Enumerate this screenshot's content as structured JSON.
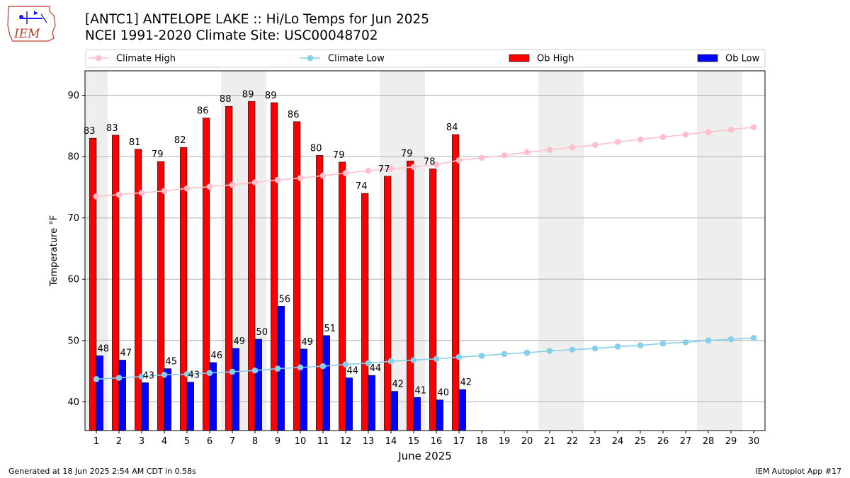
{
  "title_line1": "[ANTC1] ANTELOPE LAKE :: Hi/Lo Temps for Jun 2025",
  "title_line2": "NCEI 1991-2020 Climate Site: USC00048702",
  "logo_text": "IEM",
  "footer_left": "Generated at 18 Jun 2025 2:54 AM CDT in 0.58s",
  "footer_right": "IEM Autoplot App #17",
  "colors": {
    "climate_high": "#ffc0cb",
    "climate_low": "#87ceeb",
    "ob_high": "#ff0000",
    "ob_low": "#0000ff",
    "weekend_band": "#eeeeee",
    "grid": "#b0b0b0"
  },
  "chart_data": {
    "type": "bar",
    "xlabel": "June 2025",
    "ylabel": "Temperature °F",
    "xlim": [
      0.5,
      30.5
    ],
    "ylim": [
      35.3,
      94.0
    ],
    "yticks": [
      40,
      50,
      60,
      70,
      80,
      90
    ],
    "grid": "horizontal",
    "legend_position": "top",
    "days": [
      1,
      2,
      3,
      4,
      5,
      6,
      7,
      8,
      9,
      10,
      11,
      12,
      13,
      14,
      15,
      16,
      17,
      18,
      19,
      20,
      21,
      22,
      23,
      24,
      25,
      26,
      27,
      28,
      29,
      30
    ],
    "weekend_bands": [
      [
        0.5,
        1.5
      ],
      [
        6.5,
        8.5
      ],
      [
        13.5,
        15.5
      ],
      [
        20.5,
        22.5
      ],
      [
        27.5,
        29.5
      ]
    ],
    "series": [
      {
        "name": "Climate High",
        "kind": "line",
        "values": [
          73.5,
          73.8,
          74.1,
          74.4,
          74.8,
          75.1,
          75.4,
          75.8,
          76.2,
          76.5,
          76.9,
          77.3,
          77.7,
          78.0,
          78.3,
          78.7,
          79.4,
          79.8,
          80.2,
          80.7,
          81.1,
          81.5,
          81.9,
          82.4,
          82.8,
          83.2,
          83.6,
          84.0,
          84.4,
          84.8
        ]
      },
      {
        "name": "Climate Low",
        "kind": "line",
        "values": [
          43.7,
          43.9,
          44.1,
          44.4,
          44.5,
          44.7,
          44.9,
          45.1,
          45.4,
          45.6,
          45.8,
          46.1,
          46.3,
          46.6,
          46.8,
          47.0,
          47.3,
          47.5,
          47.8,
          48.0,
          48.3,
          48.5,
          48.7,
          49.0,
          49.2,
          49.5,
          49.7,
          50.0,
          50.2,
          50.4
        ]
      },
      {
        "name": "Ob High",
        "kind": "bar",
        "values": [
          83,
          83.5,
          81.2,
          79.2,
          81.5,
          86.3,
          88.2,
          89,
          88.8,
          85.7,
          80.2,
          79.1,
          74,
          76.8,
          79.3,
          78,
          83.6
        ],
        "labels": [
          "83",
          "83",
          "81",
          "79",
          "82",
          "86",
          "88",
          "89",
          "89",
          "86",
          "80",
          "79",
          "74",
          "77",
          "79",
          "78",
          "84"
        ]
      },
      {
        "name": "Ob Low",
        "kind": "bar",
        "values": [
          47.5,
          46.8,
          43.1,
          45.4,
          43.2,
          46.4,
          48.7,
          50.2,
          55.6,
          48.6,
          50.8,
          43.9,
          44.3,
          41.7,
          40.7,
          40.3,
          42
        ],
        "labels": [
          "48",
          "47",
          "43",
          "45",
          "43",
          "46",
          "49",
          "50",
          "56",
          "49",
          "51",
          "44",
          "44",
          "42",
          "41",
          "40",
          "42"
        ]
      }
    ]
  }
}
